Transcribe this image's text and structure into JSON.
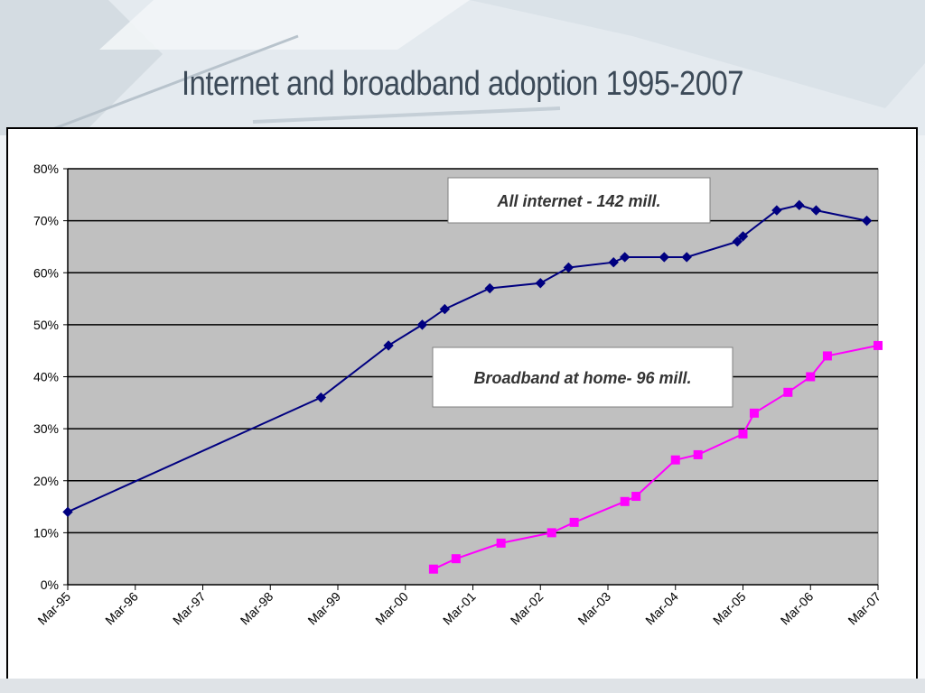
{
  "page_title": "Internet and broadband adoption 1995-2007",
  "colors": {
    "plot_bg": "#c0c0c0",
    "series_all_internet": "#000080",
    "series_broadband": "#ff00ff"
  },
  "chart_data": {
    "type": "line",
    "title": "Internet and broadband adoption 1995-2007",
    "xlabel": "",
    "ylabel": "",
    "x_ticks": [
      "Mar-95",
      "Mar-96",
      "Mar-97",
      "Mar-98",
      "Mar-99",
      "Mar-00",
      "Mar-01",
      "Mar-02",
      "Mar-03",
      "Mar-04",
      "Mar-05",
      "Mar-06",
      "Mar-07"
    ],
    "y_ticks": [
      "0%",
      "10%",
      "20%",
      "30%",
      "40%",
      "50%",
      "60%",
      "70%",
      "80%"
    ],
    "ylim": [
      0,
      80
    ],
    "xlim": [
      "1995-03",
      "2007-03"
    ],
    "grid": "horizontal",
    "series": [
      {
        "label": "All internet - 142 mill.",
        "marker": "diamond",
        "points": [
          {
            "x": "1995-03",
            "y": 14
          },
          {
            "x": "1998-12",
            "y": 36
          },
          {
            "x": "1999-12",
            "y": 46
          },
          {
            "x": "2000-06",
            "y": 50
          },
          {
            "x": "2000-10",
            "y": 53
          },
          {
            "x": "2001-06",
            "y": 57
          },
          {
            "x": "2002-03",
            "y": 58
          },
          {
            "x": "2002-08",
            "y": 61
          },
          {
            "x": "2003-04",
            "y": 62
          },
          {
            "x": "2003-06",
            "y": 63
          },
          {
            "x": "2004-01",
            "y": 63
          },
          {
            "x": "2004-05",
            "y": 63
          },
          {
            "x": "2005-02",
            "y": 66
          },
          {
            "x": "2005-03",
            "y": 67
          },
          {
            "x": "2005-09",
            "y": 72
          },
          {
            "x": "2006-01",
            "y": 73
          },
          {
            "x": "2006-04",
            "y": 72
          },
          {
            "x": "2007-01",
            "y": 70
          }
        ]
      },
      {
        "label": "Broadband at home-  96 mill.",
        "marker": "square",
        "points": [
          {
            "x": "2000-08",
            "y": 3
          },
          {
            "x": "2000-12",
            "y": 5
          },
          {
            "x": "2001-08",
            "y": 8
          },
          {
            "x": "2002-05",
            "y": 10
          },
          {
            "x": "2002-09",
            "y": 12
          },
          {
            "x": "2003-06",
            "y": 16
          },
          {
            "x": "2003-08",
            "y": 17
          },
          {
            "x": "2004-03",
            "y": 24
          },
          {
            "x": "2004-07",
            "y": 25
          },
          {
            "x": "2005-03",
            "y": 29
          },
          {
            "x": "2005-05",
            "y": 33
          },
          {
            "x": "2005-11",
            "y": 37
          },
          {
            "x": "2006-03",
            "y": 40
          },
          {
            "x": "2006-06",
            "y": 44
          },
          {
            "x": "2007-03",
            "y": 46
          }
        ]
      }
    ]
  }
}
